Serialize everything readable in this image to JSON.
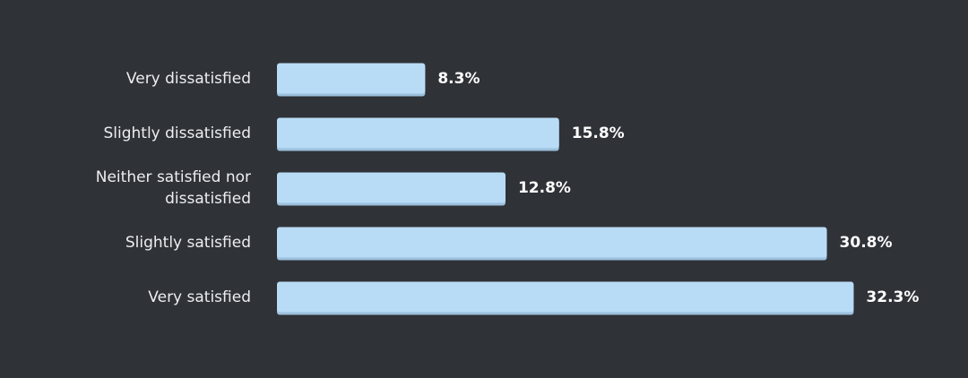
{
  "chart_data": {
    "type": "bar",
    "orientation": "horizontal",
    "categories": [
      "Very dissatisfied",
      "Slightly dissatisfied",
      "Neither satisfied nor dissatisfied",
      "Slightly satisfied",
      "Very satisfied"
    ],
    "category_label_lines": [
      [
        "Very dissatisfied"
      ],
      [
        "Slightly dissatisfied"
      ],
      [
        "Neither satisfied nor",
        "dissatisfied"
      ],
      [
        "Slightly satisfied"
      ],
      [
        "Very satisfied"
      ]
    ],
    "values": [
      8.3,
      15.8,
      12.8,
      30.8,
      32.3
    ],
    "value_labels": [
      "8.3%",
      "15.8%",
      "12.8%",
      "30.8%",
      "32.3%"
    ],
    "unit": "%",
    "title": "",
    "xlabel": "",
    "ylabel": "",
    "grid": false,
    "colors": {
      "background": "#2f3237",
      "bar": "#b9dcf6",
      "bar_shadow": "#9cc0dc",
      "category_text": "#eceef0",
      "value_text": "#ffffff"
    }
  }
}
